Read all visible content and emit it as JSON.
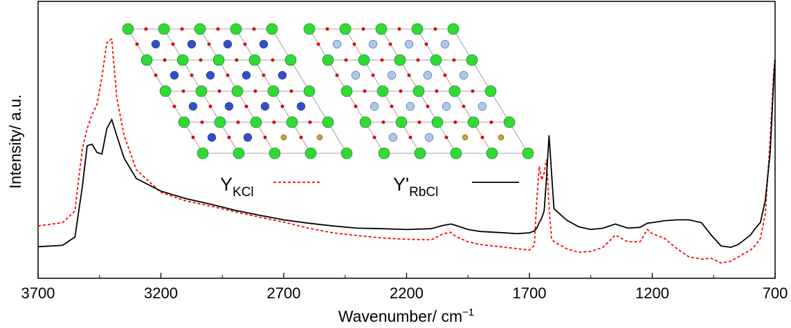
{
  "chart_data": {
    "type": "line",
    "x_label": "Wavenumber/ cm",
    "x_label_superscript": "−1",
    "y_label": "Intensity/ a.u.",
    "x": [
      3700,
      3600,
      3550,
      3520,
      3500,
      3480,
      3460,
      3440,
      3420,
      3400,
      3380,
      3350,
      3300,
      3200,
      3100,
      3000,
      2900,
      2800,
      2700,
      2600,
      2500,
      2400,
      2300,
      2200,
      2100,
      2050,
      2020,
      2000,
      1950,
      1900,
      1800,
      1750,
      1700,
      1680,
      1670,
      1660,
      1650,
      1640,
      1630,
      1620,
      1610,
      1600,
      1550,
      1500,
      1450,
      1400,
      1350,
      1300,
      1250,
      1220,
      1200,
      1150,
      1100,
      1050,
      1000,
      960,
      920,
      880,
      850,
      800,
      780,
      760,
      740,
      720,
      705,
      700
    ],
    "series": [
      {
        "name": "Y",
        "name_subscript": "KCl",
        "color": "#ff0000",
        "dashed": true,
        "values": [
          18.9,
          20.1,
          24.3,
          46.7,
          54.1,
          59.1,
          62.8,
          72.7,
          85.1,
          86.4,
          65.3,
          51.6,
          39.2,
          31.0,
          28.0,
          26.1,
          24.1,
          22.1,
          20.3,
          18.1,
          16.4,
          15.4,
          14.6,
          14.1,
          13.9,
          16.1,
          16.6,
          15.1,
          13.2,
          12.2,
          11.2,
          10.7,
          10.2,
          11.9,
          28.0,
          40.4,
          35.5,
          38.0,
          42.9,
          25.6,
          14.4,
          13.2,
          10.7,
          9.4,
          9.7,
          11.2,
          15.6,
          13.2,
          13.2,
          17.6,
          16.1,
          14.4,
          10.7,
          7.7,
          6.9,
          7.2,
          5.5,
          6.2,
          7.7,
          10.2,
          11.9,
          14.4,
          23.1,
          50.4,
          75.2,
          80.1
        ]
      },
      {
        "name": "Y'",
        "name_subscript": "RbCl",
        "color": "#000000",
        "dashed": false,
        "values": [
          11.4,
          11.9,
          14.9,
          33.0,
          47.9,
          48.4,
          45.4,
          44.9,
          54.1,
          57.3,
          51.6,
          43.4,
          36.0,
          31.5,
          28.8,
          26.8,
          24.6,
          22.8,
          21.1,
          19.9,
          18.9,
          18.1,
          17.9,
          17.6,
          17.9,
          19.1,
          19.6,
          19.1,
          17.6,
          16.9,
          16.4,
          16.1,
          16.4,
          17.1,
          18.1,
          20.1,
          21.8,
          24.3,
          36.7,
          51.6,
          38.0,
          25.1,
          21.1,
          18.6,
          17.6,
          18.1,
          19.6,
          18.1,
          18.4,
          19.9,
          20.1,
          20.8,
          21.1,
          21.1,
          20.1,
          15.6,
          11.7,
          11.2,
          12.2,
          15.6,
          18.1,
          20.1,
          28.0,
          45.4,
          72.7,
          78.9
        ]
      }
    ],
    "xlim": [
      3700,
      700
    ],
    "xticks": [
      3700,
      3200,
      2700,
      2200,
      1700,
      1200,
      700
    ],
    "xminor_ticks": [
      3450,
      2950,
      2450,
      1950,
      1450,
      950
    ],
    "ylim": [
      0,
      100
    ],
    "grid": false
  }
}
